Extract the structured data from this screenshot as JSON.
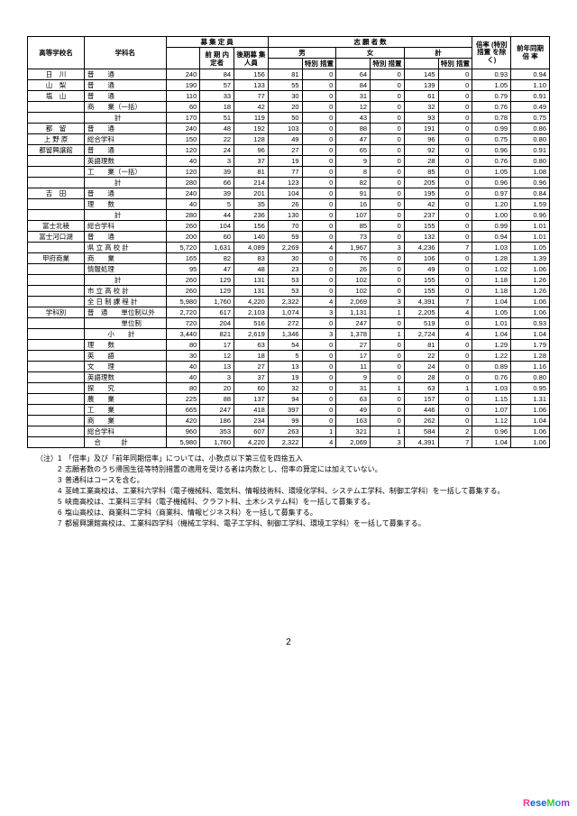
{
  "header": {
    "cols": [
      "高等学校名",
      "学科名",
      "募 集 定 員",
      "志 願 者 数",
      "倍率\n(特別措置\nを除く)",
      "前年同期\n倍 率"
    ],
    "sub1": [
      "前 期\n内定者",
      "後期募\n集人員",
      "男",
      "女",
      "計"
    ],
    "sub2": [
      "",
      "特別\n措置",
      "",
      "特別\n措置",
      "",
      "特別\n措置"
    ]
  },
  "rows": [
    [
      "日　川",
      "普　　通",
      "240",
      "84",
      "156",
      "81",
      "0",
      "64",
      "0",
      "145",
      "0",
      "0.93",
      "0.94"
    ],
    [
      "山　梨",
      "普　　通",
      "190",
      "57",
      "133",
      "55",
      "0",
      "84",
      "0",
      "139",
      "0",
      "1.05",
      "1.10"
    ],
    [
      "塩　山",
      "普　　通",
      "110",
      "33",
      "77",
      "30",
      "0",
      "31",
      "0",
      "61",
      "0",
      "0.79",
      "0.91"
    ],
    [
      "",
      "商　　業（一括）",
      "60",
      "18",
      "42",
      "20",
      "0",
      "12",
      "0",
      "32",
      "0",
      "0.76",
      "0.49"
    ],
    [
      "",
      "　　　　計",
      "170",
      "51",
      "119",
      "50",
      "0",
      "43",
      "0",
      "93",
      "0",
      "0.78",
      "0.75"
    ],
    [
      "都　留",
      "普　　通",
      "240",
      "48",
      "192",
      "103",
      "0",
      "88",
      "0",
      "191",
      "0",
      "0.99",
      "0.86"
    ],
    [
      "上 野 原",
      "総合学科",
      "150",
      "22",
      "128",
      "49",
      "0",
      "47",
      "0",
      "96",
      "0",
      "0.75",
      "0.80"
    ],
    [
      "都留興譲館",
      "普　　通",
      "120",
      "24",
      "96",
      "27",
      "0",
      "65",
      "0",
      "92",
      "0",
      "0.96",
      "0.91"
    ],
    [
      "",
      "英語理数",
      "40",
      "3",
      "37",
      "19",
      "0",
      "9",
      "0",
      "28",
      "0",
      "0.76",
      "0.80"
    ],
    [
      "",
      "工　　業（一括）",
      "120",
      "39",
      "81",
      "77",
      "0",
      "8",
      "0",
      "85",
      "0",
      "1.05",
      "1.08"
    ],
    [
      "",
      "　　　　計",
      "280",
      "66",
      "214",
      "123",
      "0",
      "82",
      "0",
      "205",
      "0",
      "0.96",
      "0.96"
    ],
    [
      "吉　田",
      "普　　通",
      "240",
      "39",
      "201",
      "104",
      "0",
      "91",
      "0",
      "195",
      "0",
      "0.97",
      "0.84"
    ],
    [
      "",
      "理　　数",
      "40",
      "5",
      "35",
      "26",
      "0",
      "16",
      "0",
      "42",
      "0",
      "1.20",
      "1.59"
    ],
    [
      "",
      "　　　　計",
      "280",
      "44",
      "236",
      "130",
      "0",
      "107",
      "0",
      "237",
      "0",
      "1.00",
      "0.96"
    ],
    [
      "富士北稜",
      "総合学科",
      "260",
      "104",
      "156",
      "70",
      "0",
      "85",
      "0",
      "155",
      "0",
      "0.99",
      "1.01"
    ],
    [
      "富士河口湖",
      "普　　通",
      "200",
      "60",
      "140",
      "59",
      "0",
      "73",
      "0",
      "132",
      "0",
      "0.94",
      "1.01"
    ],
    [
      "",
      "県 立 高 校 計",
      "5,720",
      "1,631",
      "4,089",
      "2,269",
      "4",
      "1,967",
      "3",
      "4,236",
      "7",
      "1.03",
      "1.05"
    ],
    [
      "甲府商業",
      "商　　業",
      "165",
      "82",
      "83",
      "30",
      "0",
      "76",
      "0",
      "106",
      "0",
      "1.28",
      "1.39"
    ],
    [
      "",
      "情報処理",
      "95",
      "47",
      "48",
      "23",
      "0",
      "26",
      "0",
      "49",
      "0",
      "1.02",
      "1.06"
    ],
    [
      "",
      "　　　　計",
      "260",
      "129",
      "131",
      "53",
      "0",
      "102",
      "0",
      "155",
      "0",
      "1.18",
      "1.26"
    ],
    [
      "",
      "市 立 高 校 計",
      "260",
      "129",
      "131",
      "53",
      "0",
      "102",
      "0",
      "155",
      "0",
      "1.18",
      "1.26"
    ],
    [
      "",
      "全 日 制 課 程 計",
      "5,980",
      "1,760",
      "4,220",
      "2,322",
      "4",
      "2,069",
      "3",
      "4,391",
      "7",
      "1.04",
      "1.06"
    ],
    [
      "学科別",
      "普　通　　単位制以外",
      "2,720",
      "617",
      "2,103",
      "1,074",
      "3",
      "1,131",
      "1",
      "2,205",
      "4",
      "1.05",
      "1.06"
    ],
    [
      "",
      "　　　　　単位制",
      "720",
      "204",
      "516",
      "272",
      "0",
      "247",
      "0",
      "519",
      "0",
      "1.01",
      "0.93"
    ],
    [
      "",
      "　　　小　　計",
      "3,440",
      "821",
      "2,619",
      "1,346",
      "3",
      "1,378",
      "1",
      "2,724",
      "4",
      "1.04",
      "1.04"
    ],
    [
      "",
      "理　　数",
      "80",
      "17",
      "63",
      "54",
      "0",
      "27",
      "0",
      "81",
      "0",
      "1.29",
      "1.79"
    ],
    [
      "",
      "英　　語",
      "30",
      "12",
      "18",
      "5",
      "0",
      "17",
      "0",
      "22",
      "0",
      "1.22",
      "1.28"
    ],
    [
      "",
      "文　　理",
      "40",
      "13",
      "27",
      "13",
      "0",
      "11",
      "0",
      "24",
      "0",
      "0.89",
      "1.16"
    ],
    [
      "",
      "英語理数",
      "40",
      "3",
      "37",
      "19",
      "0",
      "9",
      "0",
      "28",
      "0",
      "0.76",
      "0.80"
    ],
    [
      "",
      "探　　究",
      "80",
      "20",
      "60",
      "32",
      "0",
      "31",
      "1",
      "63",
      "1",
      "1.03",
      "0.95"
    ],
    [
      "",
      "農　　業",
      "225",
      "88",
      "137",
      "94",
      "0",
      "63",
      "0",
      "157",
      "0",
      "1.15",
      "1.31"
    ],
    [
      "",
      "工　　業",
      "665",
      "247",
      "418",
      "397",
      "0",
      "49",
      "0",
      "446",
      "0",
      "1.07",
      "1.06"
    ],
    [
      "",
      "商　　業",
      "420",
      "186",
      "234",
      "99",
      "0",
      "163",
      "0",
      "262",
      "0",
      "1.12",
      "1.04"
    ],
    [
      "",
      "総合学科",
      "960",
      "353",
      "607",
      "263",
      "1",
      "321",
      "1",
      "584",
      "2",
      "0.96",
      "1.06"
    ],
    [
      "",
      "　合　　　計",
      "5,980",
      "1,760",
      "4,220",
      "2,322",
      "4",
      "2,069",
      "3",
      "4,391",
      "7",
      "1.04",
      "1.06"
    ]
  ],
  "notes": [
    "「倍率」及び「前年同期倍率」については、小数点以下第三位を四捨五入",
    "志願者数のうち帰国生徒等特別措置の適用を受ける者は内数とし、倍率の算定には加えていない。",
    "普通科はコースを含む。",
    "韮崎工業高校は、工業科六学科（電子機械科、電気科、情報技術科、環境化学科、システム工学科、制御工学科）を一括して募集する。",
    "峡南高校は、工業科三学科（電子機械科、クラフト科、土木システム科）を一括して募集する。",
    "塩山高校は、商業科二学科（商業科、情報ビジネス科）を一括して募集する。",
    "都留興譲館高校は、工業科四学科（機械工学科、電子工学科、制御工学科、環境工学科）を一括して募集する。"
  ],
  "page": "2",
  "logo": "ReseMom"
}
